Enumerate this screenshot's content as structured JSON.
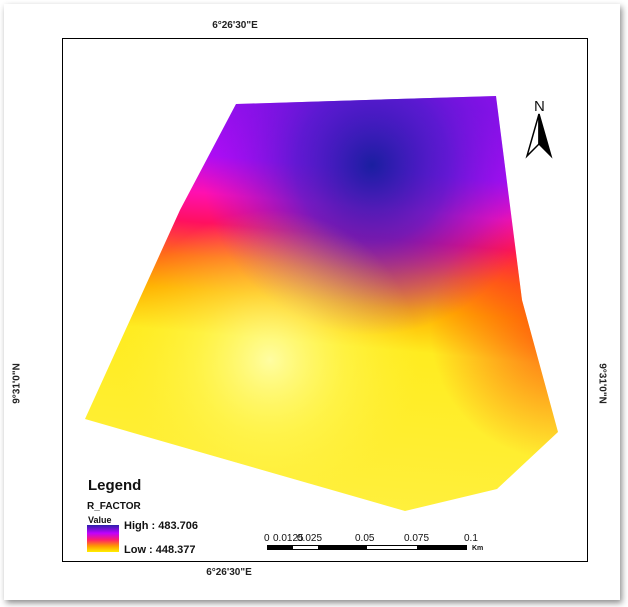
{
  "map": {
    "coord_top": "6°26'30\"E",
    "coord_bottom": "6°26'30\"E",
    "coord_left": "9°31'0\"N",
    "coord_right": "9°31'0\"N",
    "north_label": "N"
  },
  "legend": {
    "title": "Legend",
    "layer": "R_FACTOR",
    "field": "Value",
    "high": "High : 483.706",
    "low": "Low : 448.377",
    "colors": [
      "#2a1faa",
      "#c000ff",
      "#ff1f6b",
      "#ff9a00",
      "#fff000"
    ]
  },
  "scale_bar": {
    "ticks": [
      "0",
      "0.0125",
      "0.025",
      "0.05",
      "0.075",
      "0.1"
    ],
    "unit": "Km"
  }
}
